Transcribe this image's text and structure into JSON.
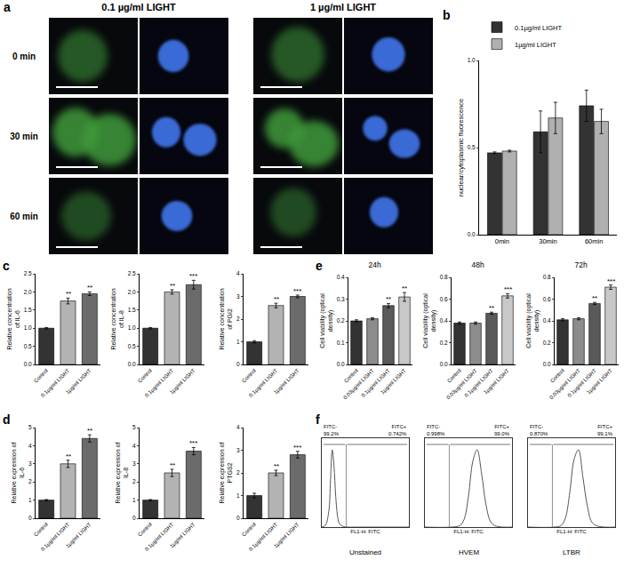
{
  "panel_a": {
    "panel": "a",
    "columns": [
      "0.1 µg/ml LIGHT",
      "1 µg/ml LIGHT"
    ],
    "rows": [
      "0 min",
      "30 min",
      "60 min"
    ]
  },
  "chart_data": [
    {
      "panel": "b",
      "type": "bar",
      "categories": [
        "0min",
        "30min",
        "60min"
      ],
      "series": [
        {
          "name": "0.1µg/ml LIGHT",
          "color": "#333333",
          "values": [
            0.47,
            0.59,
            0.74
          ],
          "errors": [
            0.005,
            0.12,
            0.09
          ]
        },
        {
          "name": "1µg/ml LIGHT",
          "color": "#b0b0b0",
          "values": [
            0.48,
            0.67,
            0.65
          ],
          "errors": [
            0.005,
            0.09,
            0.07
          ]
        }
      ],
      "y_label": "nuclear/cytoplasmic fluorescence",
      "ylim": [
        0,
        1.0
      ],
      "yticks": [
        {
          "value": 0,
          "label": "0.0"
        },
        0.5,
        {
          "value": 1,
          "label": "1.0"
        }
      ],
      "legend": "top left"
    },
    {
      "panel": "c",
      "type": "bar",
      "categories": [
        "Control",
        "0.1µg/ml LIGHT",
        "1µg/ml LIGHT"
      ],
      "values": [
        1.0,
        1.75,
        1.95
      ],
      "errors": [
        0.02,
        0.08,
        0.05
      ],
      "colors": [
        "#333333",
        "#b3b3b3",
        "#6b6b6b"
      ],
      "y_label": "Relative concentration of IL-6",
      "ylim": [
        0,
        2.5
      ],
      "yticks": [
        {
          "value": 0,
          "label": "0.0"
        },
        0.5,
        {
          "value": 1,
          "label": "1.0"
        },
        1.5,
        {
          "value": 2,
          "label": "2.0"
        },
        2.5
      ],
      "significance": [
        null,
        "**",
        "**"
      ]
    },
    {
      "type": "bar",
      "categories": [
        "Control",
        "0.1µg/ml LIGHT",
        "1µg/ml LIGHT"
      ],
      "values": [
        1.0,
        2.0,
        2.2
      ],
      "errors": [
        0.02,
        0.06,
        0.12
      ],
      "colors": [
        "#333333",
        "#b3b3b3",
        "#6b6b6b"
      ],
      "y_label": "Relative concentration of IL-8",
      "ylim": [
        0,
        2.5
      ],
      "yticks": [
        {
          "value": 0,
          "label": "0.0"
        },
        0.5,
        {
          "value": 1,
          "label": "1.0"
        },
        1.5,
        {
          "value": 2,
          "label": "2.0"
        },
        2.5
      ],
      "significance": [
        null,
        "**",
        "***"
      ]
    },
    {
      "type": "bar",
      "categories": [
        "Control",
        "0.1µg/ml LIGHT",
        "1µg/ml LIGHT"
      ],
      "values": [
        1.0,
        2.6,
        3.0
      ],
      "errors": [
        0.05,
        0.1,
        0.06
      ],
      "colors": [
        "#333333",
        "#b3b3b3",
        "#6b6b6b"
      ],
      "y_label": "Relative concentration of PGI2",
      "ylim": [
        0,
        4
      ],
      "yticks": [
        0,
        1,
        2,
        3,
        4
      ],
      "significance": [
        null,
        "**",
        "***"
      ]
    },
    {
      "panel": "d",
      "type": "bar",
      "categories": [
        "Control",
        "0.1µg/ml LIGHT",
        "1µg/ml LIGHT"
      ],
      "values": [
        1.0,
        3.0,
        4.4
      ],
      "errors": [
        0.03,
        0.2,
        0.2
      ],
      "colors": [
        "#333333",
        "#b3b3b3",
        "#6b6b6b"
      ],
      "y_label": "Relative expression of IL-6",
      "ylim": [
        0,
        5
      ],
      "yticks": [
        0,
        1,
        2,
        3,
        4,
        5
      ],
      "significance": [
        null,
        "**",
        "**"
      ]
    },
    {
      "type": "bar",
      "categories": [
        "Control",
        "0.1µg/ml LIGHT",
        "1µg/ml LIGHT"
      ],
      "values": [
        1.0,
        2.5,
        3.7
      ],
      "errors": [
        0.03,
        0.2,
        0.2
      ],
      "colors": [
        "#333333",
        "#b3b3b3",
        "#6b6b6b"
      ],
      "y_label": "Relative expression of IL-8",
      "ylim": [
        0,
        5
      ],
      "yticks": [
        0,
        1,
        2,
        3,
        4,
        5
      ],
      "significance": [
        null,
        "**",
        "***"
      ]
    },
    {
      "type": "bar",
      "categories": [
        "Control",
        "0.1µg/ml LIGHT",
        "1µg/ml LIGHT"
      ],
      "values": [
        1.0,
        2.0,
        2.8
      ],
      "errors": [
        0.1,
        0.12,
        0.15
      ],
      "colors": [
        "#333333",
        "#b3b3b3",
        "#6b6b6b"
      ],
      "y_label": "Relative expression of PTGS2",
      "ylim": [
        0,
        4
      ],
      "yticks": [
        0,
        1,
        2,
        3,
        4
      ],
      "significance": [
        null,
        "**",
        "***"
      ]
    },
    {
      "panel": "e",
      "type": "bar",
      "title": "24h",
      "categories": [
        "Control",
        "0.03µg/ml LIGHT",
        "0.1µg/ml LIGHT",
        "1µg/ml LIGHT"
      ],
      "values": [
        0.2,
        0.21,
        0.27,
        0.31
      ],
      "errors": [
        0.005,
        0.005,
        0.01,
        0.02
      ],
      "colors": [
        "#333333",
        "#8c8c8c",
        "#5a5a5a",
        "#c8c8c8"
      ],
      "y_label": "Cell viability (optical density)",
      "ylim": [
        0,
        0.4
      ],
      "yticks": [
        {
          "value": 0,
          "label": "0.0"
        },
        0.1,
        0.2,
        0.3,
        0.4
      ],
      "significance": [
        null,
        null,
        "**",
        "**"
      ]
    },
    {
      "type": "bar",
      "title": "48h",
      "categories": [
        "Control",
        "0.03µg/ml LIGHT",
        "0.1µg/ml LIGHT",
        "1µg/ml LIGHT"
      ],
      "values": [
        0.38,
        0.38,
        0.47,
        0.63
      ],
      "errors": [
        0.01,
        0.01,
        0.01,
        0.02
      ],
      "colors": [
        "#333333",
        "#8c8c8c",
        "#5a5a5a",
        "#c8c8c8"
      ],
      "y_label": "Cell viability (optical density)",
      "ylim": [
        0,
        0.8
      ],
      "yticks": [
        {
          "value": 0,
          "label": "0.0"
        },
        0.2,
        0.4,
        0.6,
        0.8
      ],
      "significance": [
        null,
        null,
        "**",
        "***"
      ]
    },
    {
      "type": "bar",
      "title": "72h",
      "categories": [
        "Control",
        "0.03µg/ml LIGHT",
        "0.1µg/ml LIGHT",
        "1µg/ml LIGHT"
      ],
      "values": [
        0.41,
        0.42,
        0.56,
        0.71
      ],
      "errors": [
        0.01,
        0.01,
        0.01,
        0.02
      ],
      "colors": [
        "#333333",
        "#8c8c8c",
        "#5a5a5a",
        "#c8c8c8"
      ],
      "y_label": "Cell viability (optical density)",
      "ylim": [
        0,
        0.8
      ],
      "yticks": [
        {
          "value": 0,
          "label": "0.0"
        },
        0.2,
        0.4,
        0.6,
        0.8
      ],
      "significance": [
        null,
        null,
        "**",
        "***"
      ]
    },
    {
      "panel": "f",
      "type": "line",
      "title": "Unstained",
      "x_label": "FL1-H: FITC",
      "x": [
        0,
        4,
        8,
        10,
        12,
        14,
        16,
        18,
        20,
        24,
        30,
        40,
        100
      ],
      "values": [
        0,
        2,
        20,
        60,
        100,
        80,
        40,
        15,
        5,
        1,
        0,
        0,
        0
      ],
      "xlim": [
        0,
        100
      ],
      "ylim": [
        0,
        115
      ],
      "tick_labels": false,
      "gate": 28,
      "gate_labels": [
        "FITC-",
        "FITC+"
      ],
      "gate_percents": [
        "99.2%",
        "0.742%"
      ]
    },
    {
      "type": "line",
      "title": "HVEM",
      "x_label": "FL1-H: FITC",
      "x": [
        0,
        30,
        40,
        45,
        50,
        55,
        60,
        65,
        70,
        75,
        80,
        90,
        100
      ],
      "values": [
        0,
        0,
        2,
        10,
        40,
        85,
        100,
        70,
        30,
        8,
        2,
        0,
        0
      ],
      "xlim": [
        0,
        100
      ],
      "ylim": [
        0,
        115
      ],
      "tick_labels": false,
      "gate": 28,
      "gate_labels": [
        "FITC-",
        "FITC+"
      ],
      "gate_percents": [
        "0.998%",
        "99.0%"
      ]
    },
    {
      "type": "line",
      "title": "LTBR",
      "x_label": "FL1-H: FITC",
      "x": [
        0,
        30,
        38,
        43,
        48,
        53,
        58,
        63,
        68,
        73,
        78,
        88,
        100
      ],
      "values": [
        0,
        0,
        2,
        12,
        45,
        88,
        100,
        65,
        28,
        7,
        2,
        0,
        0
      ],
      "xlim": [
        0,
        100
      ],
      "ylim": [
        0,
        115
      ],
      "tick_labels": false,
      "gate": 28,
      "gate_labels": [
        "FITC-",
        "FITC+"
      ],
      "gate_percents": [
        "0.870%",
        "99.1%"
      ]
    }
  ]
}
